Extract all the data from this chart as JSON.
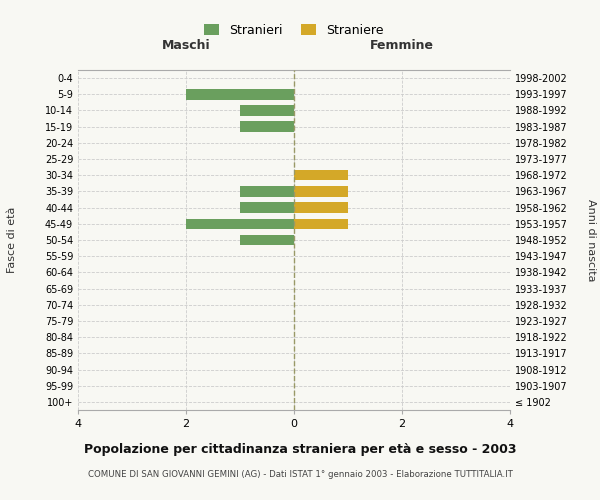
{
  "age_groups": [
    "100+",
    "95-99",
    "90-94",
    "85-89",
    "80-84",
    "75-79",
    "70-74",
    "65-69",
    "60-64",
    "55-59",
    "50-54",
    "45-49",
    "40-44",
    "35-39",
    "30-34",
    "25-29",
    "20-24",
    "15-19",
    "10-14",
    "5-9",
    "0-4"
  ],
  "birth_years": [
    "≤ 1902",
    "1903-1907",
    "1908-1912",
    "1913-1917",
    "1918-1922",
    "1923-1927",
    "1928-1932",
    "1933-1937",
    "1938-1942",
    "1943-1947",
    "1948-1952",
    "1953-1957",
    "1958-1962",
    "1963-1967",
    "1968-1972",
    "1973-1977",
    "1978-1982",
    "1983-1987",
    "1988-1992",
    "1993-1997",
    "1998-2002"
  ],
  "males": [
    0,
    0,
    0,
    0,
    0,
    0,
    0,
    0,
    0,
    0,
    1,
    2,
    1,
    1,
    0,
    0,
    0,
    1,
    1,
    2,
    0
  ],
  "females": [
    0,
    0,
    0,
    0,
    0,
    0,
    0,
    0,
    0,
    0,
    0,
    1,
    1,
    1,
    1,
    0,
    0,
    0,
    0,
    0,
    0
  ],
  "male_color": "#6a9f5e",
  "female_color": "#d4a828",
  "male_label": "Stranieri",
  "female_label": "Straniere",
  "xlim": 4,
  "title": "Popolazione per cittadinanza straniera per età e sesso - 2003",
  "subtitle": "COMUNE DI SAN GIOVANNI GEMINI (AG) - Dati ISTAT 1° gennaio 2003 - Elaborazione TUTTITALIA.IT",
  "ylabel_left": "Fasce di età",
  "ylabel_right": "Anni di nascita",
  "xlabel_left": "Maschi",
  "xlabel_right": "Femmine",
  "bg_color": "#f8f8f3",
  "grid_color": "#cccccc",
  "center_line_color": "#999966"
}
